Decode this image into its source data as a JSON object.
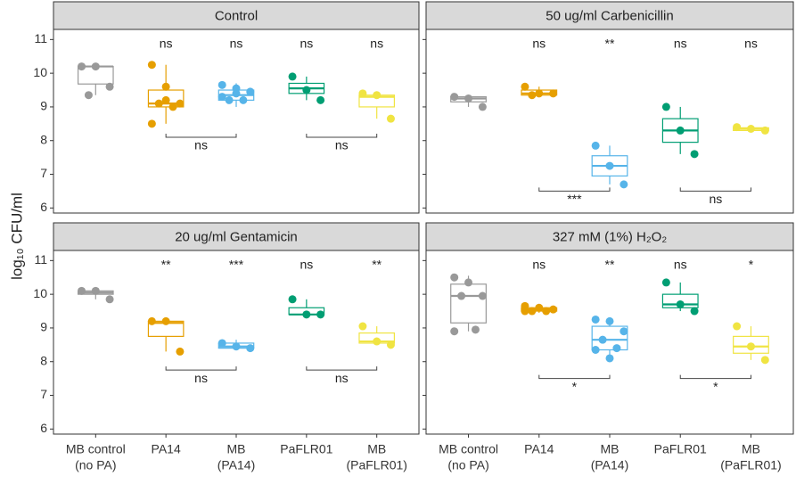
{
  "chart_data": {
    "type": "box",
    "ylabel": "log₁₀ CFU/ml",
    "categories": [
      [
        "MB control",
        "(no PA)"
      ],
      [
        "PA14"
      ],
      [
        "MB",
        "(PA14)"
      ],
      [
        "PaFLR01"
      ],
      [
        "MB",
        "(PaFLR01)"
      ]
    ],
    "colors": [
      "#999999",
      "#E69F00",
      "#56B4E9",
      "#009E73",
      "#F0E442"
    ],
    "ylim": [
      5.85,
      11.3
    ],
    "yticks": [
      6,
      7,
      8,
      9,
      10,
      11
    ],
    "panels": [
      {
        "title": "Control",
        "boxes": [
          {
            "low": 9.35,
            "q1": 9.68,
            "median": 10.2,
            "q3": 10.2,
            "high": 10.25,
            "points": [
              10.2,
              10.2,
              9.6,
              9.35
            ]
          },
          {
            "low": 8.5,
            "q1": 9.0,
            "median": 9.1,
            "q3": 9.5,
            "high": 10.25,
            "points": [
              10.25,
              9.6,
              9.1,
              9.1,
              9.0,
              8.5,
              9.2
            ]
          },
          {
            "low": 9.0,
            "q1": 9.2,
            "median": 9.35,
            "q3": 9.5,
            "high": 9.7,
            "points": [
              9.65,
              9.55,
              9.45,
              9.2,
              9.2,
              9.3,
              9.4
            ]
          },
          {
            "low": 9.2,
            "q1": 9.4,
            "median": 9.55,
            "q3": 9.7,
            "high": 9.9,
            "points": [
              9.9,
              9.5,
              9.2
            ]
          },
          {
            "low": 8.65,
            "q1": 9.0,
            "median": 9.3,
            "q3": 9.35,
            "high": 9.45,
            "points": [
              9.4,
              9.35,
              8.65
            ]
          }
        ],
        "labels": [
          null,
          "ns",
          "ns",
          "ns",
          "ns"
        ],
        "brackets": [
          {
            "from": 1,
            "to": 2,
            "y": 8.1,
            "label": "ns"
          },
          {
            "from": 3,
            "to": 4,
            "y": 8.1,
            "label": "ns"
          }
        ]
      },
      {
        "title": "50 ug/ml Carbenicillin",
        "boxes": [
          {
            "low": 9.0,
            "q1": 9.15,
            "median": 9.25,
            "q3": 9.3,
            "high": 9.35,
            "points": [
              9.3,
              9.25,
              9.0
            ]
          },
          {
            "low": 9.3,
            "q1": 9.35,
            "median": 9.4,
            "q3": 9.5,
            "high": 9.6,
            "points": [
              9.6,
              9.4,
              9.4,
              9.35
            ]
          },
          {
            "low": 6.7,
            "q1": 6.95,
            "median": 7.25,
            "q3": 7.55,
            "high": 7.85,
            "points": [
              7.85,
              7.25,
              6.7
            ]
          },
          {
            "low": 7.6,
            "q1": 7.95,
            "median": 8.3,
            "q3": 8.65,
            "high": 9.0,
            "points": [
              9.0,
              8.3,
              7.6
            ]
          },
          {
            "low": 8.28,
            "q1": 8.3,
            "median": 8.35,
            "q3": 8.38,
            "high": 8.4,
            "points": [
              8.4,
              8.35,
              8.3
            ]
          }
        ],
        "labels": [
          null,
          "ns",
          "**",
          "ns",
          "ns"
        ],
        "brackets": [
          {
            "from": 1,
            "to": 2,
            "y": 6.5,
            "label": "***"
          },
          {
            "from": 3,
            "to": 4,
            "y": 6.5,
            "label": "ns"
          }
        ]
      },
      {
        "title": "20 ug/ml Gentamicin",
        "boxes": [
          {
            "low": 9.85,
            "q1": 10.0,
            "median": 10.05,
            "q3": 10.1,
            "high": 10.15,
            "points": [
              10.1,
              10.1,
              9.85
            ]
          },
          {
            "low": 8.3,
            "q1": 8.75,
            "median": 9.15,
            "q3": 9.2,
            "high": 9.2,
            "points": [
              9.2,
              9.2,
              8.3
            ]
          },
          {
            "low": 8.4,
            "q1": 8.4,
            "median": 8.45,
            "q3": 8.55,
            "high": 8.65,
            "points": [
              8.55,
              8.45,
              8.4
            ]
          },
          {
            "low": 9.4,
            "q1": 9.4,
            "median": 9.4,
            "q3": 9.6,
            "high": 9.85,
            "points": [
              9.85,
              9.4,
              9.4
            ]
          },
          {
            "low": 8.5,
            "q1": 8.55,
            "median": 8.6,
            "q3": 8.85,
            "high": 9.05,
            "points": [
              9.05,
              8.6,
              8.5
            ]
          }
        ],
        "labels": [
          null,
          "**",
          "***",
          "ns",
          "**"
        ],
        "brackets": [
          {
            "from": 1,
            "to": 2,
            "y": 7.75,
            "label": "ns"
          },
          {
            "from": 3,
            "to": 4,
            "y": 7.75,
            "label": "ns"
          }
        ]
      },
      {
        "title": "327 mM (1%) H₂O₂",
        "boxes": [
          {
            "low": 8.9,
            "q1": 9.15,
            "median": 9.95,
            "q3": 10.3,
            "high": 10.55,
            "points": [
              10.5,
              10.35,
              9.95,
              9.95,
              8.95,
              8.9
            ]
          },
          {
            "low": 9.45,
            "q1": 9.5,
            "median": 9.55,
            "q3": 9.6,
            "high": 9.65,
            "points": [
              9.65,
              9.6,
              9.55,
              9.5,
              9.5,
              9.5
            ]
          },
          {
            "low": 8.1,
            "q1": 8.35,
            "median": 8.65,
            "q3": 9.05,
            "high": 9.25,
            "points": [
              9.25,
              9.2,
              8.9,
              8.65,
              8.4,
              8.35,
              8.1
            ]
          },
          {
            "low": 9.5,
            "q1": 9.6,
            "median": 9.7,
            "q3": 10.0,
            "high": 10.35,
            "points": [
              10.35,
              9.7,
              9.5
            ]
          },
          {
            "low": 8.05,
            "q1": 8.25,
            "median": 8.45,
            "q3": 8.75,
            "high": 9.05,
            "points": [
              9.05,
              8.45,
              8.05
            ]
          }
        ],
        "labels": [
          null,
          "ns",
          "**",
          "ns",
          "*"
        ],
        "brackets": [
          {
            "from": 1,
            "to": 2,
            "y": 7.5,
            "label": "*"
          },
          {
            "from": 3,
            "to": 4,
            "y": 7.5,
            "label": "*"
          }
        ]
      }
    ]
  }
}
